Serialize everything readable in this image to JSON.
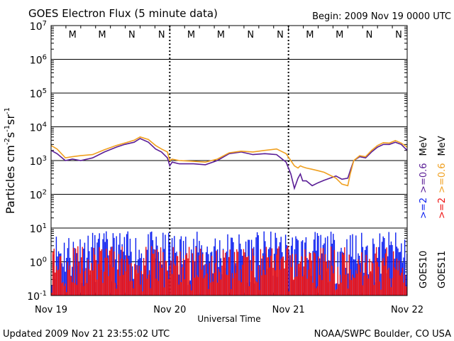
{
  "chart_data": {
    "type": "line",
    "title": "GOES Electron Flux (5 minute data)",
    "begin_label": "Begin: 2009 Nov 19 0000 UTC",
    "xlabel": "Universal Time",
    "ylabel_parts": {
      "base": "Particles cm",
      "e1": "-2",
      "s": "s",
      "e2": "-1",
      "sr": "sr",
      "e3": "-1"
    },
    "footer_left": "Updated 2009 Nov 21 23:55:02 UTC",
    "footer_right": "NOAA/SWPC Boulder, CO USA",
    "x_tick_labels": [
      "Nov 19",
      "Nov 20",
      "Nov 21",
      "Nov 22"
    ],
    "xlim_days": [
      0,
      3
    ],
    "y_scale": "log",
    "ylim": [
      0.1,
      10000000
    ],
    "y_ticks": [
      {
        "base": "10",
        "exp": "7"
      },
      {
        "base": "10",
        "exp": "6"
      },
      {
        "base": "10",
        "exp": "5"
      },
      {
        "base": "10",
        "exp": "4"
      },
      {
        "base": "10",
        "exp": "3"
      },
      {
        "base": "10",
        "exp": "2"
      },
      {
        "base": "10",
        "exp": "1"
      },
      {
        "base": "10",
        "exp": "0"
      },
      {
        "base": "10",
        "exp": "-1"
      }
    ],
    "threshold": 1000,
    "markers": [
      {
        "label": "M",
        "day": 0.3,
        "color": "#2040c0"
      },
      {
        "label": "M",
        "day": 0.55,
        "color": "#c02020"
      },
      {
        "label": "N",
        "day": 0.8,
        "color": "#2040c0"
      },
      {
        "label": "N",
        "day": 1.05,
        "color": "#c02020"
      },
      {
        "label": "M",
        "day": 1.3,
        "color": "#2040c0"
      },
      {
        "label": "M",
        "day": 1.55,
        "color": "#c02020"
      },
      {
        "label": "N",
        "day": 1.8,
        "color": "#2040c0"
      },
      {
        "label": "N",
        "day": 2.05,
        "color": "#c02020"
      },
      {
        "label": "M",
        "day": 2.3,
        "color": "#2040c0"
      },
      {
        "label": "M",
        "day": 2.55,
        "color": "#c02020"
      },
      {
        "label": "N",
        "day": 2.8,
        "color": "#2040c0"
      },
      {
        "label": "N",
        "day": 3.05,
        "color": "#c02020"
      }
    ],
    "series": [
      {
        "name": ">=0.6 MeV",
        "satellite": "GOES10",
        "color": "#5a1e96",
        "x": [
          0,
          0.05,
          0.12,
          0.18,
          0.25,
          0.35,
          0.45,
          0.55,
          0.62,
          0.7,
          0.75,
          0.82,
          0.88,
          0.93,
          0.98,
          1.0,
          1.02,
          1.08,
          1.2,
          1.3,
          1.4,
          1.5,
          1.6,
          1.7,
          1.8,
          1.9,
          1.98,
          2.02,
          2.05,
          2.08,
          2.1,
          2.12,
          2.15,
          2.2,
          2.25,
          2.3,
          2.4,
          2.45,
          2.5,
          2.52,
          2.55,
          2.6,
          2.65,
          2.7,
          2.75,
          2.8,
          2.85,
          2.9,
          2.95,
          3.0
        ],
        "y": [
          2000,
          1600,
          1000,
          1100,
          1000,
          1200,
          1800,
          2500,
          3000,
          3500,
          4500,
          3500,
          2200,
          1800,
          1200,
          700,
          900,
          800,
          800,
          750,
          1000,
          1600,
          1800,
          1500,
          1600,
          1500,
          900,
          400,
          150,
          300,
          400,
          250,
          250,
          180,
          220,
          260,
          350,
          280,
          300,
          500,
          1000,
          1300,
          1200,
          1800,
          2500,
          3000,
          3000,
          3500,
          3000,
          2000
        ]
      },
      {
        "name": ">=0.6 MeV",
        "satellite": "GOES11",
        "color": "#f0a020",
        "x": [
          0,
          0.05,
          0.12,
          0.18,
          0.25,
          0.35,
          0.45,
          0.55,
          0.62,
          0.7,
          0.75,
          0.82,
          0.88,
          0.93,
          0.98,
          1.0,
          1.02,
          1.08,
          1.2,
          1.3,
          1.4,
          1.5,
          1.6,
          1.7,
          1.8,
          1.9,
          1.98,
          2.02,
          2.05,
          2.08,
          2.1,
          2.12,
          2.15,
          2.2,
          2.25,
          2.3,
          2.4,
          2.45,
          2.5,
          2.52,
          2.55,
          2.6,
          2.65,
          2.7,
          2.75,
          2.8,
          2.85,
          2.9,
          2.95,
          3.0
        ],
        "y": [
          2800,
          2200,
          1200,
          1300,
          1400,
          1500,
          2100,
          2800,
          3300,
          4000,
          5000,
          4200,
          2800,
          2200,
          1800,
          1000,
          1100,
          1000,
          950,
          900,
          1100,
          1700,
          1900,
          1800,
          2000,
          2200,
          1600,
          1000,
          700,
          600,
          700,
          650,
          600,
          550,
          500,
          450,
          300,
          200,
          180,
          400,
          1000,
          1400,
          1300,
          2000,
          2800,
          3400,
          3300,
          3900,
          3300,
          2500
        ]
      }
    ],
    "low_channel_series": [
      {
        "name": ">=2 MeV",
        "satellite": "GOES10",
        "color": "#0a1ef0",
        "range": [
          0.2,
          8
        ],
        "seed": 11
      },
      {
        "name": ">=2 MeV",
        "satellite": "GOES11",
        "color": "#ee1111",
        "range": [
          0.12,
          3
        ],
        "seed": 29
      }
    ]
  },
  "legend": {
    "goes10": "GOES10",
    "goes11": "GOES11",
    "goes10_e2": ">=2",
    "goes10_e06": ">=0.6",
    "goes11_e2": ">=2",
    "goes11_e06": ">=0.6",
    "mev": "MeV",
    "color_blue": "#0a1ef0",
    "color_purple": "#5a1e96",
    "color_red": "#ee1111",
    "color_orange": "#f0a020"
  }
}
